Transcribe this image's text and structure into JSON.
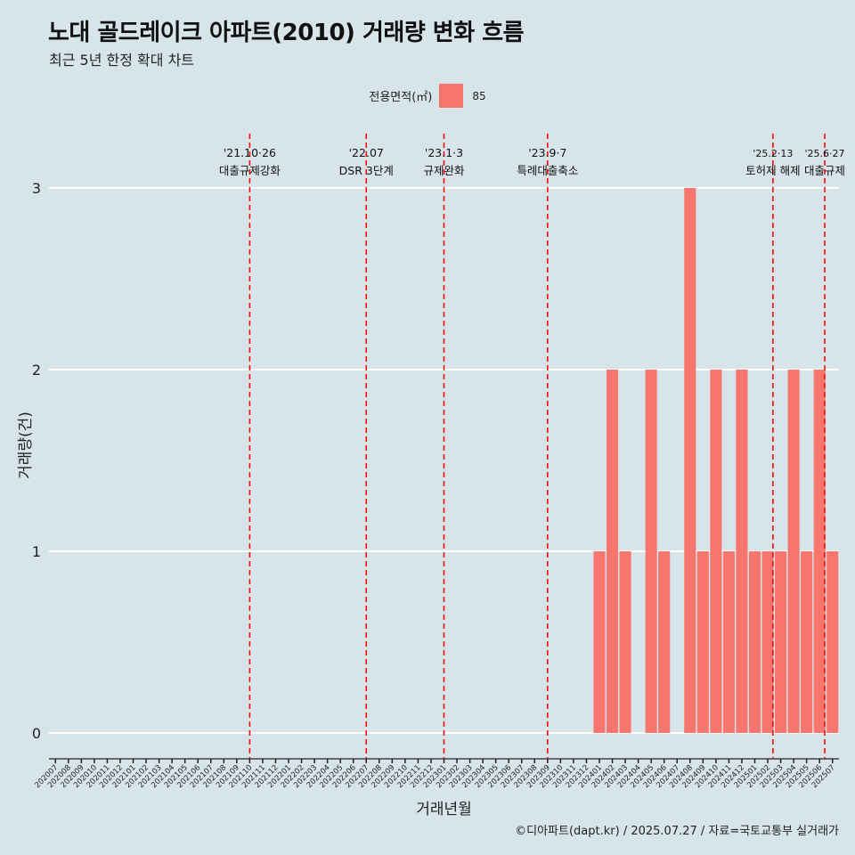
{
  "title": "노대 골드레이크 아파트(2010) 거래량 변화 흐름",
  "subtitle": "최근 5년 한정 확대 차트",
  "legend": {
    "title": "전용면적(㎡)",
    "entries": [
      "85"
    ]
  },
  "caption": "©디아파트(dapt.kr) / 2025.07.27 / 자료=국토교통부 실거래가",
  "colors": {
    "bar": "#f8766d",
    "event_line": "#ff0000",
    "background": "#d7e4ea",
    "grid": "#ffffff"
  },
  "chart_data": {
    "type": "bar",
    "title": "노대 골드레이크 아파트(2010) 거래량 변화 흐름",
    "xlabel": "거래년월",
    "ylabel": "거래량(건)",
    "ylim": [
      0,
      3
    ],
    "yticks": [
      0,
      1,
      2,
      3
    ],
    "grid": true,
    "legend_position": "top",
    "categories": [
      "202007",
      "202008",
      "202009",
      "202010",
      "202011",
      "202012",
      "202101",
      "202102",
      "202103",
      "202104",
      "202105",
      "202106",
      "202107",
      "202108",
      "202109",
      "202110",
      "202111",
      "202112",
      "202201",
      "202202",
      "202203",
      "202204",
      "202205",
      "202206",
      "202207",
      "202208",
      "202209",
      "202210",
      "202211",
      "202212",
      "202301",
      "202302",
      "202303",
      "202304",
      "202305",
      "202306",
      "202307",
      "202308",
      "202309",
      "202310",
      "202311",
      "202312",
      "202401",
      "202402",
      "202403",
      "202404",
      "202405",
      "202406",
      "202407",
      "202408",
      "202409",
      "202410",
      "202411",
      "202412",
      "202501",
      "202502",
      "202503",
      "202504",
      "202505",
      "202506",
      "202507"
    ],
    "series": [
      {
        "name": "85",
        "values": [
          0,
          0,
          0,
          0,
          0,
          0,
          0,
          0,
          0,
          0,
          0,
          0,
          0,
          0,
          0,
          0,
          0,
          0,
          0,
          0,
          0,
          0,
          0,
          0,
          0,
          0,
          0,
          0,
          0,
          0,
          0,
          0,
          0,
          0,
          0,
          0,
          0,
          0,
          0,
          0,
          0,
          0,
          1,
          2,
          1,
          0,
          2,
          1,
          0,
          3,
          1,
          2,
          1,
          2,
          1,
          1,
          1,
          2,
          1,
          2,
          1
        ]
      }
    ],
    "events": [
      {
        "date": "'21.10·26",
        "label": "대출규제강화",
        "at": "202110",
        "offset": 0.0
      },
      {
        "date": "'22.07",
        "label": "DSR 3단계",
        "at": "202207",
        "offset": 0.0
      },
      {
        "date": "'23.1·3",
        "label": "규제완화",
        "at": "202301",
        "offset": 0.0
      },
      {
        "date": "'23.9·7",
        "label": "특례대출축소",
        "at": "202309",
        "offset": 0.0
      },
      {
        "date": "'25.2·13",
        "label": "토허제 해제",
        "at": "202502",
        "offset": 0.4
      },
      {
        "date": "'25.6·27",
        "label": "대출규제",
        "at": "202506",
        "offset": 0.4
      }
    ]
  }
}
